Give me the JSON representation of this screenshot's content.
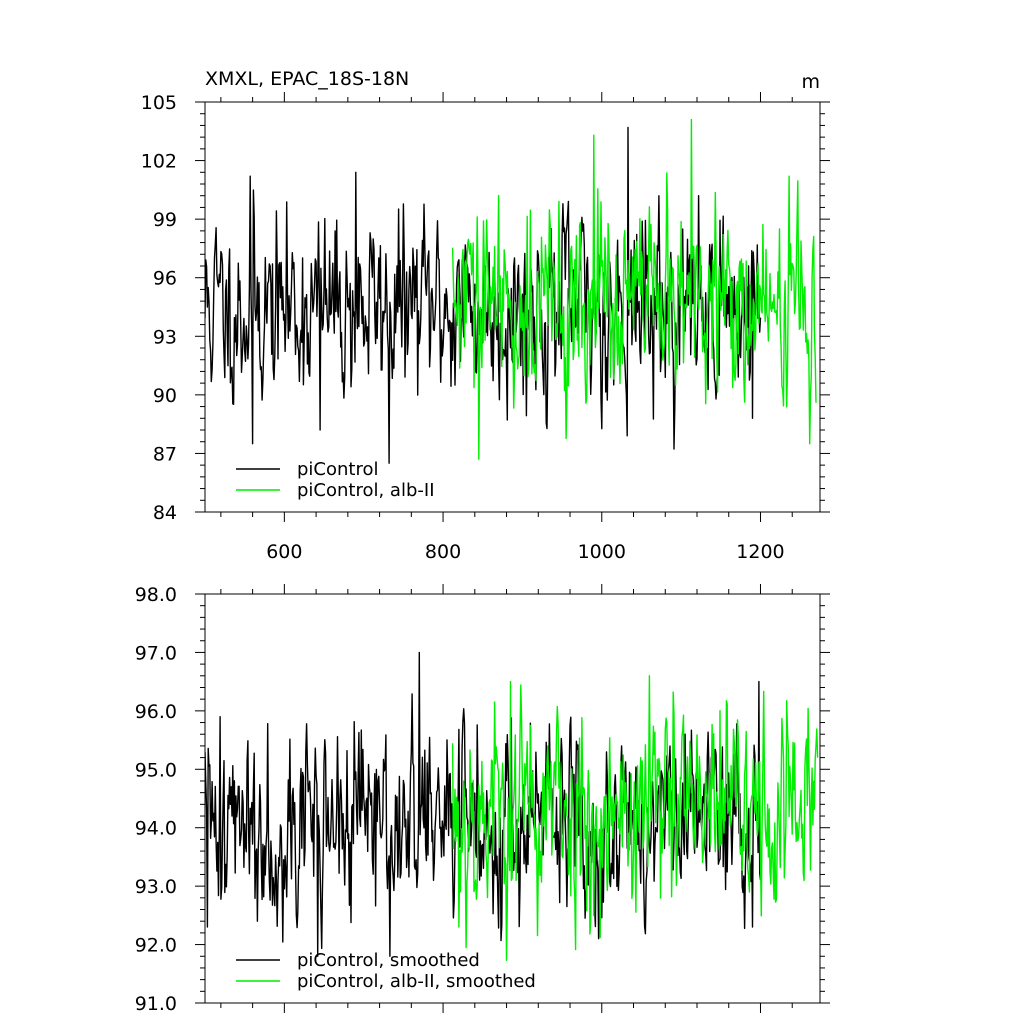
{
  "colors": {
    "control": "#000000",
    "alb": "#00ee00",
    "axis": "#000000",
    "background": "#ffffff"
  },
  "chart_data": [
    {
      "type": "line",
      "title": "XMXL, EPAC_18S-18N",
      "units": "m",
      "xlim": [
        500,
        1275
      ],
      "ylim": [
        84,
        105
      ],
      "x_ticks": [
        600,
        800,
        1000,
        1200
      ],
      "x_tick_labels": [
        "600",
        "800",
        "1000",
        "1200"
      ],
      "y_ticks": [
        84,
        87,
        90,
        93,
        96,
        99,
        102,
        105
      ],
      "y_tick_labels": [
        "84",
        "87",
        "90",
        "93",
        "96",
        "99",
        "102",
        "105"
      ],
      "legend": {
        "placement": "bottom-left",
        "entries": [
          "piControl",
          "piControl, alb-II"
        ]
      },
      "series": [
        {
          "name": "piControl",
          "color_key": "control",
          "x_range": [
            500,
            1200
          ],
          "mean": 94.5,
          "noise": 2.3,
          "seed": 11,
          "highlights": [
            [
              557,
              101.2
            ],
            [
              560,
              87.5
            ],
            [
              645,
              88.2
            ],
            [
              690,
              101.4
            ],
            [
              732,
              86.5
            ],
            [
              1033,
              103.7
            ],
            [
              1190,
              88.8
            ]
          ]
        },
        {
          "name": "piControl, alb-II",
          "color_key": "alb",
          "x_range": [
            812,
            1270
          ],
          "mean": 94.5,
          "noise": 2.4,
          "seed": 29,
          "highlights": [
            [
              845,
              86.7
            ],
            [
              990,
              103.3
            ],
            [
              1113,
              104.1
            ],
            [
              1270,
              89.6
            ]
          ]
        }
      ]
    },
    {
      "type": "line",
      "title": "",
      "xlim": [
        500,
        1275
      ],
      "ylim": [
        91,
        98
      ],
      "x_ticks": [
        600,
        800,
        1000,
        1200
      ],
      "x_tick_labels": [],
      "y_ticks": [
        91,
        92,
        93,
        94,
        95,
        96,
        97,
        98
      ],
      "y_tick_labels": [
        "91.0",
        "92.0",
        "93.0",
        "94.0",
        "95.0",
        "96.0",
        "97.0",
        "98.0"
      ],
      "legend": {
        "placement": "bottom-left",
        "entries": [
          "piControl, smoothed",
          "piControl, alb-II, smoothed"
        ]
      },
      "series": [
        {
          "name": "piControl, smoothed",
          "color_key": "control",
          "x_range": [
            500,
            1200
          ],
          "mean": 94.1,
          "noise": 0.8,
          "seed": 41,
          "highlights": [
            [
              503,
              92.3
            ],
            [
              519,
              95.9
            ],
            [
              566,
              92.4
            ],
            [
              642,
              91.8
            ],
            [
              770,
              97.0
            ],
            [
              733,
              91.8
            ],
            [
              1190,
              92.3
            ],
            [
              1198,
              96.5
            ]
          ]
        },
        {
          "name": "piControl, alb-II, smoothed",
          "color_key": "alb",
          "x_range": [
            812,
            1272
          ],
          "mean": 94.3,
          "noise": 0.9,
          "seed": 53,
          "highlights": [
            [
              820,
              92.3
            ],
            [
              885,
              96.5
            ],
            [
              990,
              92.5
            ],
            [
              1060,
              96.6
            ],
            [
              1272,
              95.2
            ]
          ]
        }
      ]
    }
  ]
}
